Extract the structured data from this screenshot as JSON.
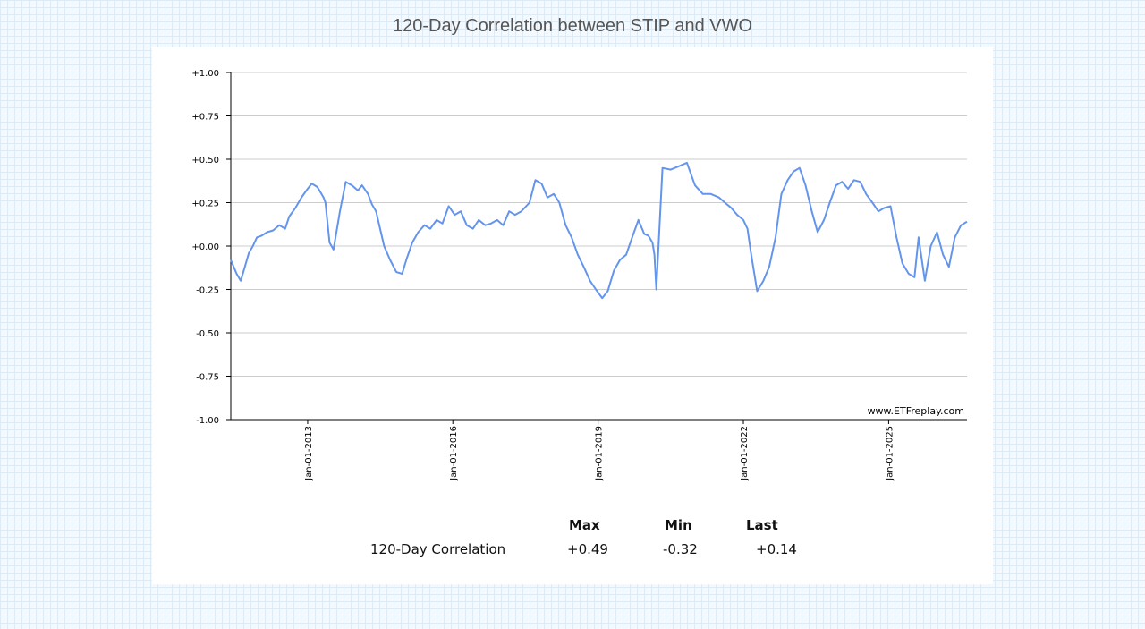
{
  "title": "120-Day Correlation between STIP and VWO",
  "watermark": "www.ETFreplay.com",
  "stats": {
    "headers": {
      "max": "Max",
      "min": "Min",
      "last": "Last"
    },
    "row_label": "120-Day Correlation",
    "max": "+0.49",
    "min": "-0.32",
    "last": "+0.14"
  },
  "colors": {
    "line": "#6495ed",
    "grid": "#cccccc",
    "axis": "#000000"
  },
  "chart_data": {
    "type": "line",
    "title": "120-Day Correlation between STIP and VWO",
    "xlabel": "",
    "ylabel": "",
    "ylim": [
      -1.0,
      1.0
    ],
    "xlim": [
      "2011-06-01",
      "2026-08-15"
    ],
    "y_ticks": [
      "+1.00",
      "+0.75",
      "+0.50",
      "+0.25",
      "+0.00",
      "-0.25",
      "-0.50",
      "-0.75",
      "-1.00"
    ],
    "x_ticks": [
      "Jan-01-2013",
      "Jan-01-2016",
      "Jan-01-2019",
      "Jan-01-2022",
      "Jan-01-2025"
    ],
    "grid": true,
    "legend": "none",
    "series": [
      {
        "name": "",
        "x": [
          "2011-06-01",
          "2011-07-15",
          "2011-08-15",
          "2011-09-15",
          "2011-10-15",
          "2011-11-15",
          "2011-12-15",
          "2012-01-20",
          "2012-03-01",
          "2012-04-15",
          "2012-06-01",
          "2012-07-15",
          "2012-08-15",
          "2012-10-01",
          "2012-11-15",
          "2013-01-01",
          "2013-02-01",
          "2013-03-15",
          "2013-04-15",
          "2013-05-01",
          "2013-05-15",
          "2013-06-15",
          "2013-07-15",
          "2013-09-01",
          "2013-10-15",
          "2013-12-01",
          "2014-01-15",
          "2014-02-15",
          "2014-04-01",
          "2014-05-01",
          "2014-06-01",
          "2014-07-01",
          "2014-08-01",
          "2014-09-15",
          "2014-11-01",
          "2014-12-15",
          "2015-01-15",
          "2015-03-01",
          "2015-04-15",
          "2015-06-01",
          "2015-07-15",
          "2015-09-01",
          "2015-10-15",
          "2015-12-01",
          "2016-01-15",
          "2016-03-01",
          "2016-04-15",
          "2016-06-01",
          "2016-07-15",
          "2016-09-01",
          "2016-10-15",
          "2016-12-01",
          "2017-01-15",
          "2017-03-01",
          "2017-04-15",
          "2017-06-01",
          "2017-08-01",
          "2017-09-15",
          "2017-11-01",
          "2017-12-15",
          "2018-02-01",
          "2018-03-15",
          "2018-05-01",
          "2018-06-15",
          "2018-08-01",
          "2018-09-15",
          "2018-11-01",
          "2018-12-15",
          "2019-02-01",
          "2019-03-15",
          "2019-05-01",
          "2019-06-15",
          "2019-08-01",
          "2019-09-15",
          "2019-11-01",
          "2019-12-15",
          "2020-01-15",
          "2020-02-15",
          "2020-03-01",
          "2020-03-15",
          "2020-05-01",
          "2020-07-01",
          "2020-09-01",
          "2020-11-01",
          "2021-01-01",
          "2021-03-01",
          "2021-05-01",
          "2021-07-01",
          "2021-08-15",
          "2021-10-01",
          "2021-11-15",
          "2022-01-01",
          "2022-02-01",
          "2022-03-01",
          "2022-04-15",
          "2022-06-01",
          "2022-07-15",
          "2022-09-01",
          "2022-10-15",
          "2022-12-01",
          "2023-01-15",
          "2023-03-01",
          "2023-04-15",
          "2023-06-01",
          "2023-07-15",
          "2023-09-01",
          "2023-10-15",
          "2023-12-01",
          "2024-01-15",
          "2024-03-01",
          "2024-04-15",
          "2024-06-01",
          "2024-07-15",
          "2024-09-01",
          "2024-10-15",
          "2024-12-01",
          "2025-01-15",
          "2025-03-01",
          "2025-04-15",
          "2025-06-01",
          "2025-07-15",
          "2025-08-15",
          "2025-10-01",
          "2025-11-15",
          "2026-01-01",
          "2026-02-15",
          "2026-04-01",
          "2026-05-15",
          "2026-07-01",
          "2026-08-15"
        ],
        "values": [
          -0.08,
          -0.16,
          -0.2,
          -0.12,
          -0.04,
          0.0,
          0.05,
          0.06,
          0.08,
          0.09,
          0.12,
          0.1,
          0.17,
          0.22,
          0.28,
          0.33,
          0.36,
          0.34,
          0.3,
          0.28,
          0.25,
          0.02,
          -0.02,
          0.2,
          0.37,
          0.35,
          0.32,
          0.35,
          0.3,
          0.24,
          0.2,
          0.1,
          0.0,
          -0.08,
          -0.15,
          -0.16,
          -0.08,
          0.02,
          0.08,
          0.12,
          0.1,
          0.15,
          0.13,
          0.23,
          0.18,
          0.2,
          0.12,
          0.1,
          0.15,
          0.12,
          0.13,
          0.15,
          0.12,
          0.2,
          0.18,
          0.2,
          0.25,
          0.38,
          0.36,
          0.28,
          0.3,
          0.25,
          0.12,
          0.05,
          -0.05,
          -0.12,
          -0.2,
          -0.25,
          -0.3,
          -0.26,
          -0.14,
          -0.08,
          -0.05,
          0.05,
          0.15,
          0.07,
          0.06,
          0.02,
          -0.05,
          -0.25,
          0.45,
          0.44,
          0.46,
          0.48,
          0.35,
          0.3,
          0.3,
          0.28,
          0.25,
          0.22,
          0.18,
          0.15,
          0.1,
          -0.05,
          -0.26,
          -0.2,
          -0.12,
          0.05,
          0.3,
          0.38,
          0.43,
          0.45,
          0.35,
          0.2,
          0.08,
          0.15,
          0.25,
          0.35,
          0.37,
          0.33,
          0.38,
          0.37,
          0.3,
          0.25,
          0.2,
          0.22,
          0.23,
          0.05,
          -0.1,
          -0.16,
          -0.18,
          0.05,
          -0.2,
          0.0,
          0.08,
          -0.05,
          -0.12,
          0.05,
          0.12,
          0.14
        ]
      }
    ]
  }
}
